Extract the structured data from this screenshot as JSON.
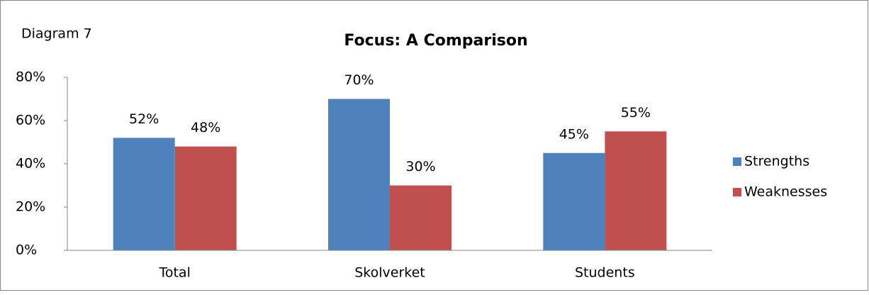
{
  "chart_data": {
    "type": "bar",
    "title": "Focus: A Comparison",
    "annotation": "Diagram 7",
    "categories": [
      "Total",
      "Skolverket",
      "Students"
    ],
    "series": [
      {
        "name": "Strengths",
        "color": "#4f81bd",
        "values": [
          52,
          70,
          45
        ],
        "value_labels": [
          "52%",
          "70%",
          "45%"
        ]
      },
      {
        "name": "Weaknesses",
        "color": "#c0504d",
        "values": [
          48,
          30,
          55
        ],
        "value_labels": [
          "48%",
          "30%",
          "55%"
        ]
      }
    ],
    "ylim": [
      0,
      80
    ],
    "yticks": [
      {
        "value": 0,
        "label": "0%"
      },
      {
        "value": 20,
        "label": "20%"
      },
      {
        "value": 40,
        "label": "40%"
      },
      {
        "value": 60,
        "label": "60%"
      },
      {
        "value": 80,
        "label": "80%"
      }
    ],
    "grid": false,
    "legend": "right"
  }
}
